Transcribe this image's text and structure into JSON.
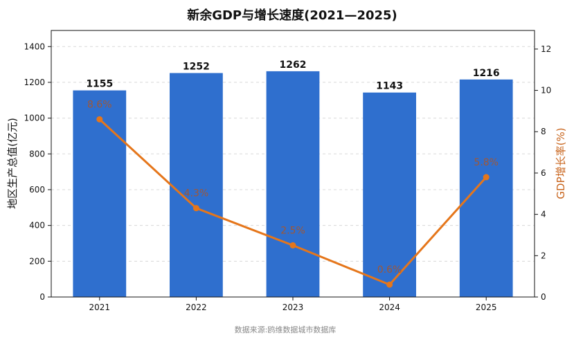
{
  "chart_data": {
    "type": "bar",
    "title": "新余GDP与增长速度(2021—2025)",
    "categories": [
      "2021",
      "2022",
      "2023",
      "2024",
      "2025"
    ],
    "series": [
      {
        "name": "",
        "type": "bar",
        "axis": "left",
        "values": [
          1155,
          1252,
          1262,
          1143,
          1216
        ],
        "labels": [
          "1155",
          "1252",
          "1262",
          "1143",
          "1216"
        ]
      },
      {
        "name": "",
        "type": "line",
        "axis": "right",
        "values": [
          8.6,
          4.3,
          2.5,
          0.6,
          5.8
        ],
        "labels": [
          "8.6%",
          "4.3%",
          "2.5%",
          "0.6%",
          "5.8%"
        ]
      }
    ],
    "ylabel": "地区生产总值(亿元)",
    "y2label": "GDP增长率(%)",
    "ylim": [
      0,
      1490
    ],
    "y2lim": [
      0,
      12.9
    ],
    "yticks": [
      "0",
      "200",
      "400",
      "600",
      "800",
      "1000",
      "1200",
      "1400"
    ],
    "y2ticks": [
      "0",
      "2",
      "4",
      "6",
      "8",
      "10",
      "12"
    ],
    "grid": "horizontal dashed",
    "source": "数据来源:鸥维数据城市数据库"
  },
  "colors": {
    "bar": "#2f6fce",
    "line": "#e5761b",
    "y2_title": "#c8641c",
    "rate_label": "#b5531a"
  }
}
